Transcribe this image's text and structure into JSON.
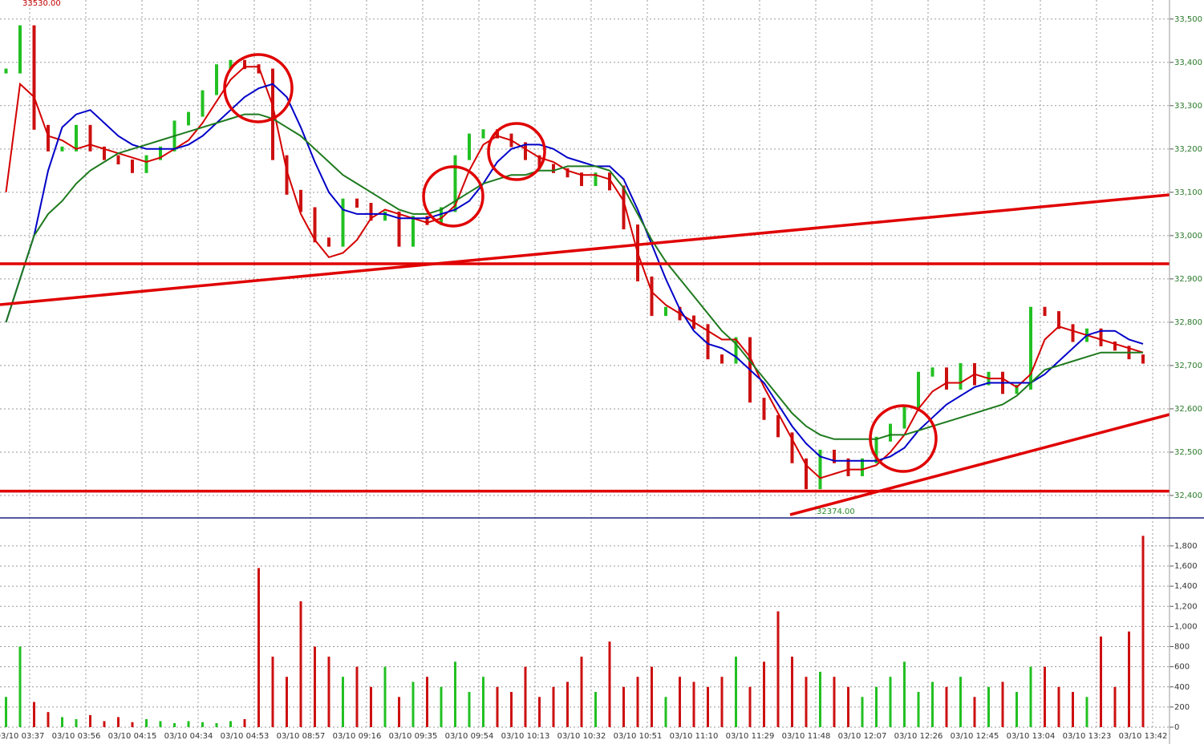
{
  "chart_data": [
    {
      "type": "line",
      "high_label": "33530.00",
      "low_label": "32374.00",
      "ylim": [
        32350,
        33544
      ],
      "yticks": [
        {
          "value": 32400,
          "label": "32,400"
        },
        {
          "value": 32500,
          "label": "32,500"
        },
        {
          "value": 32600,
          "label": "32,600"
        },
        {
          "value": 32700,
          "label": "32,700"
        },
        {
          "value": 32800,
          "label": "32,800"
        },
        {
          "value": 32900,
          "label": "32,900"
        },
        {
          "value": 33000,
          "label": "33,000"
        },
        {
          "value": 33100,
          "label": "33,100"
        },
        {
          "value": 33200,
          "label": "33,200"
        },
        {
          "value": 33300,
          "label": "33,300"
        },
        {
          "value": 33400,
          "label": "33,400"
        },
        {
          "value": 33500,
          "label": "33,500"
        }
      ],
      "levels": [
        32935,
        32410
      ],
      "level_color": "#e00000",
      "up_color": "#22c022",
      "down_color": "#cc1010",
      "close": [
        33380,
        33480,
        33250,
        33200,
        33200,
        33250,
        33200,
        33180,
        33170,
        33150,
        33180,
        33200,
        33260,
        33280,
        33330,
        33390,
        33400,
        33390,
        33380,
        33180,
        33100,
        33060,
        32990,
        32980,
        33080,
        33070,
        33040,
        33050,
        32980,
        33040,
        33030,
        33060,
        33180,
        33230,
        33240,
        33230,
        33210,
        33180,
        33160,
        33150,
        33140,
        33120,
        33140,
        33110,
        33020,
        32900,
        32820,
        32830,
        32810,
        32790,
        32720,
        32710,
        32760,
        32620,
        32580,
        32540,
        32480,
        32420,
        32500,
        32480,
        32450,
        32480,
        32530,
        32560,
        32600,
        32680,
        32690,
        32650,
        32700,
        32660,
        32680,
        32640,
        32650,
        32830,
        32820,
        32790,
        32760,
        32780,
        32750,
        32740,
        32720,
        32710
      ],
      "series": [
        {
          "color": "#d40000",
          "values": [
            33100,
            33350,
            33320,
            33230,
            33220,
            33200,
            33210,
            33200,
            33190,
            33180,
            33170,
            33180,
            33200,
            33220,
            33260,
            33310,
            33360,
            33390,
            33390,
            33300,
            33150,
            33050,
            32990,
            32950,
            32960,
            32990,
            33040,
            33060,
            33050,
            33040,
            33030,
            33040,
            33070,
            33150,
            33210,
            33230,
            33220,
            33200,
            33180,
            33170,
            33150,
            33140,
            33140,
            33130,
            33080,
            32960,
            32870,
            32840,
            32820,
            32800,
            32780,
            32760,
            32760,
            32720,
            32650,
            32590,
            32530,
            32470,
            32440,
            32450,
            32460,
            32460,
            32470,
            32500,
            32540,
            32600,
            32640,
            32660,
            32660,
            32680,
            32670,
            32670,
            32650,
            32680,
            32760,
            32790,
            32780,
            32770,
            32760,
            32750,
            32740,
            32730
          ]
        },
        {
          "color": "#0000c8",
          "values": [
            32800,
            32900,
            33000,
            33150,
            33250,
            33280,
            33290,
            33260,
            33230,
            33210,
            33200,
            33200,
            33200,
            33210,
            33230,
            33260,
            33290,
            33320,
            33340,
            33350,
            33320,
            33250,
            33170,
            33100,
            33060,
            33050,
            33050,
            33050,
            33040,
            33040,
            33040,
            33050,
            33060,
            33080,
            33120,
            33170,
            33200,
            33210,
            33210,
            33200,
            33180,
            33170,
            33160,
            33160,
            33130,
            33060,
            32980,
            32900,
            32830,
            32780,
            32750,
            32740,
            32720,
            32690,
            32660,
            32610,
            32560,
            32520,
            32490,
            32480,
            32480,
            32480,
            32480,
            32490,
            32510,
            32550,
            32580,
            32610,
            32630,
            32650,
            32660,
            32660,
            32660,
            32660,
            32680,
            32710,
            32740,
            32770,
            32780,
            32780,
            32760,
            32750
          ]
        },
        {
          "color": "#1e7a1e",
          "values": [
            32800,
            32900,
            33000,
            33050,
            33080,
            33120,
            33150,
            33170,
            33190,
            33200,
            33210,
            33220,
            33230,
            33240,
            33250,
            33260,
            33270,
            33280,
            33280,
            33270,
            33250,
            33230,
            33200,
            33170,
            33140,
            33120,
            33100,
            33080,
            33060,
            33050,
            33050,
            33060,
            33080,
            33100,
            33120,
            33130,
            33140,
            33140,
            33150,
            33150,
            33160,
            33160,
            33160,
            33150,
            33110,
            33050,
            32990,
            32940,
            32900,
            32860,
            32820,
            32780,
            32750,
            32710,
            32670,
            32630,
            32590,
            32560,
            32540,
            32530,
            32530,
            32530,
            32530,
            32540,
            32540,
            32550,
            32560,
            32570,
            32580,
            32590,
            32600,
            32610,
            32630,
            32660,
            32690,
            32700,
            32710,
            32720,
            32730,
            32730,
            32730,
            32730
          ]
        }
      ]
    },
    {
      "type": "bar",
      "categories": [
        null,
        "03/10 03:37",
        null,
        null,
        null,
        "03/10 03:56",
        null,
        null,
        null,
        "03/10 04:15",
        null,
        null,
        null,
        "03/10 04:34",
        null,
        null,
        null,
        "03/10 04:53",
        null,
        null,
        null,
        "03/10 08:57",
        null,
        null,
        null,
        "03/10 09:16",
        null,
        null,
        null,
        "03/10 09:35",
        null,
        null,
        null,
        "03/10 09:54",
        null,
        null,
        null,
        "03/10 10:13",
        null,
        null,
        null,
        "03/10 10:32",
        null,
        null,
        null,
        "03/10 10:51",
        null,
        null,
        null,
        "03/10 11:10",
        null,
        null,
        null,
        "03/10 11:29",
        null,
        null,
        null,
        "03/10 11:48",
        null,
        null,
        null,
        "03/10 12:07",
        null,
        null,
        null,
        "03/10 12:26",
        null,
        null,
        null,
        "03/10 12:45",
        null,
        null,
        null,
        "03/10 13:04",
        null,
        null,
        null,
        "03/10 13:23",
        null,
        null,
        null,
        "03/10 13:42"
      ],
      "values": [
        300,
        800,
        250,
        150,
        100,
        80,
        120,
        60,
        100,
        50,
        80,
        60,
        40,
        60,
        50,
        40,
        60,
        80,
        1580,
        700,
        500,
        1250,
        800,
        700,
        500,
        600,
        400,
        600,
        300,
        450,
        500,
        400,
        650,
        350,
        500,
        400,
        350,
        600,
        300,
        400,
        450,
        700,
        350,
        850,
        400,
        500,
        600,
        300,
        500,
        450,
        400,
        500,
        700,
        400,
        650,
        1150,
        700,
        500,
        550,
        500,
        400,
        300,
        400,
        500,
        650,
        350,
        450,
        400,
        500,
        300,
        400,
        450,
        350,
        600,
        600,
        400,
        350,
        300,
        900,
        400,
        950,
        1900
      ],
      "ylim": [
        0,
        2046
      ],
      "yticks": [
        0,
        200,
        400,
        600,
        800,
        {
          "value": 1000,
          "label": "1,000"
        },
        {
          "value": 1200,
          "label": "1,200"
        },
        {
          "value": 1400,
          "label": "1,400"
        },
        {
          "value": 1600,
          "label": "1,600"
        },
        {
          "value": 1800,
          "label": "1,800"
        }
      ],
      "grid": true
    }
  ]
}
